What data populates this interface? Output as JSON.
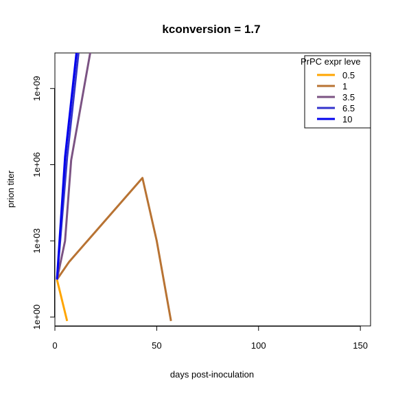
{
  "chart_data": {
    "type": "line",
    "title": "kconversion = 1.7",
    "xlabel": "days post-inoculation",
    "ylabel": "prion titer",
    "xlim": [
      0,
      155
    ],
    "ylim_log10": [
      -0.35,
      10.4
    ],
    "y_scale": "log",
    "x_ticks": [
      {
        "value": 0,
        "label": "0"
      },
      {
        "value": 50,
        "label": "50"
      },
      {
        "value": 100,
        "label": "100"
      },
      {
        "value": 150,
        "label": "150"
      }
    ],
    "y_ticks": [
      {
        "value": 1,
        "label": "1e+00"
      },
      {
        "value": 1000,
        "label": "1e+03"
      },
      {
        "value": 1000000,
        "label": "1e+06"
      },
      {
        "value": 1000000000,
        "label": "1e+09"
      }
    ],
    "legend": {
      "title": "PrPC expr leve",
      "position": "top-right"
    },
    "series": [
      {
        "name": "0.5",
        "color": "#FFA500",
        "points": [
          [
            1,
            30
          ],
          [
            6,
            0.7
          ]
        ]
      },
      {
        "name": "1",
        "color": "#B87333",
        "points": [
          [
            1,
            30
          ],
          [
            7,
            150
          ],
          [
            43,
            300000
          ],
          [
            50,
            1000
          ],
          [
            57,
            0.7
          ]
        ]
      },
      {
        "name": "3.5",
        "color": "#7B5383",
        "points": [
          [
            1,
            30
          ],
          [
            5,
            1000
          ],
          [
            8,
            1500000
          ],
          [
            18,
            50000000000
          ]
        ]
      },
      {
        "name": "6.5",
        "color": "#3333CC",
        "points": [
          [
            1,
            30
          ],
          [
            6,
            2000000
          ],
          [
            12,
            50000000000
          ]
        ]
      },
      {
        "name": "10",
        "color": "#0000EE",
        "points": [
          [
            1,
            30
          ],
          [
            5,
            2000000
          ],
          [
            11,
            50000000000
          ]
        ]
      }
    ]
  }
}
